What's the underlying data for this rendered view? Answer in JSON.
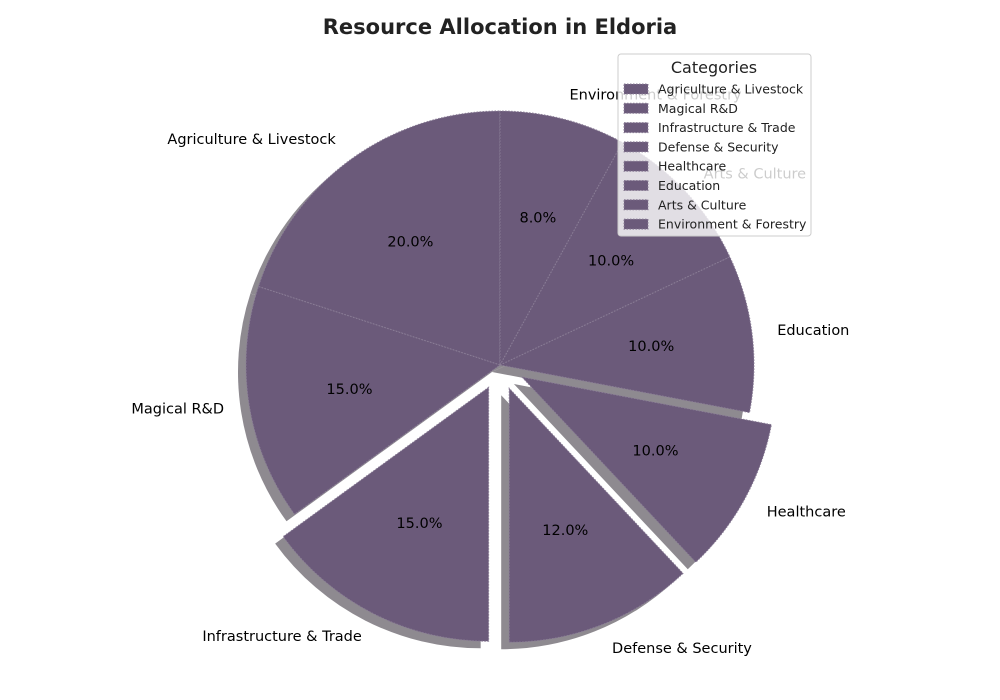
{
  "chart_data": {
    "type": "pie",
    "title": "Resource Allocation in Eldoria",
    "categories": [
      "Agriculture & Livestock",
      "Magical R&D",
      "Infrastructure & Trade",
      "Defense & Security",
      "Healthcare",
      "Education",
      "Arts & Culture",
      "Environment & Forestry"
    ],
    "values": [
      20,
      15,
      15,
      12,
      10,
      10,
      10,
      8
    ],
    "percent_labels": [
      "20.0%",
      "15.0%",
      "15.0%",
      "12.0%",
      "10.0%",
      "10.0%",
      "10.0%",
      "8.0%"
    ],
    "exploded": [
      false,
      false,
      true,
      true,
      true,
      false,
      false,
      false
    ],
    "start_angle_deg": 90,
    "direction": "counterclockwise",
    "shadow": true,
    "slice_color": "#6b5a7a",
    "edge_color": "#8a7d96",
    "shadow_color": "#8e8a90",
    "legend": {
      "title": "Categories",
      "placement": "top-right"
    }
  }
}
